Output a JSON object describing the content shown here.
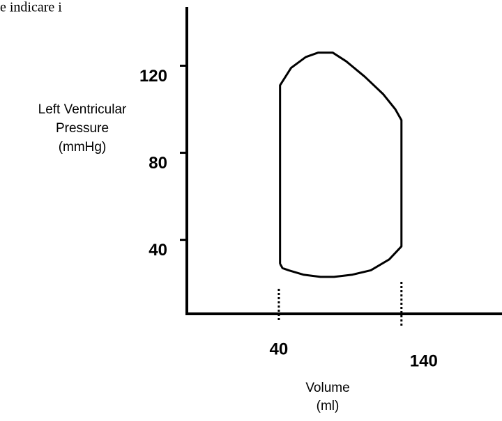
{
  "chart_data": {
    "type": "line",
    "corner_text": "e indicare i",
    "ylabel": [
      "Left Ventricular",
      "Pressure",
      "(mmHg)"
    ],
    "xlabel": [
      "Volume",
      "(ml)"
    ],
    "x": [
      41,
      41,
      50,
      62,
      72,
      84,
      95,
      110,
      125,
      135,
      140,
      140,
      130,
      115,
      100,
      85,
      74,
      60,
      48,
      43,
      41
    ],
    "series": [
      {
        "color": "#000000",
        "values": [
          29,
          111,
          119,
          124,
          126,
          126,
          122,
          115,
          107,
          100,
          95,
          37,
          31,
          26,
          24,
          23,
          23,
          24,
          26,
          27,
          29
        ]
      }
    ],
    "xlim": [
      -35,
      222
    ],
    "ylim": [
      6,
      147
    ],
    "xticks": [
      40,
      140
    ],
    "yticks": [
      40,
      80,
      120
    ]
  }
}
